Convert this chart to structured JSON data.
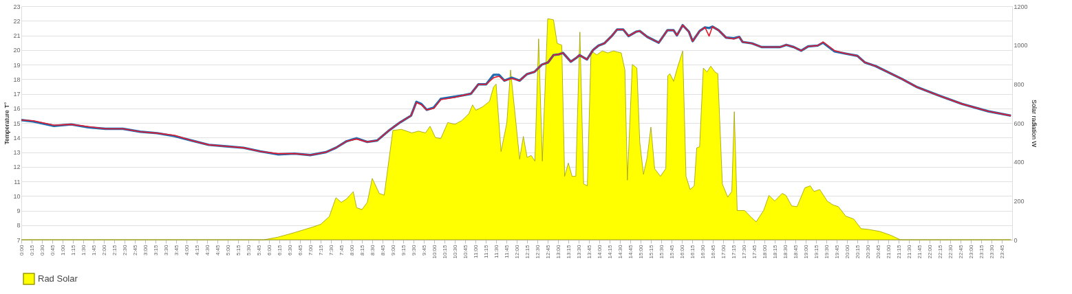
{
  "chart_data": {
    "type": "line",
    "ylabel": "Temperature T°",
    "y2label": "Solar radiation  W",
    "xlim": [
      0,
      24
    ],
    "ylim": [
      7,
      23
    ],
    "yticks": [
      7,
      8,
      9,
      10,
      11,
      12,
      13,
      14,
      15,
      16,
      17,
      18,
      19,
      20,
      21,
      22,
      23
    ],
    "y2lim": [
      0,
      1200
    ],
    "y2ticks": [
      0,
      200,
      400,
      600,
      800,
      1000,
      1200
    ],
    "grid": "y",
    "legend": "bottom",
    "xticks": [
      {
        "value": 0,
        "label": "0:00"
      },
      {
        "value": 0.25,
        "label": "0:15"
      },
      {
        "value": 0.5,
        "label": "0:30"
      },
      {
        "value": 0.75,
        "label": "0:45"
      },
      {
        "value": 1,
        "label": "1:00"
      },
      {
        "value": 1.25,
        "label": "1:15"
      },
      {
        "value": 1.5,
        "label": "1:30"
      },
      {
        "value": 1.75,
        "label": "1:45"
      },
      {
        "value": 2,
        "label": "2:00"
      },
      {
        "value": 2.25,
        "label": "2:15"
      },
      {
        "value": 2.5,
        "label": "2:30"
      },
      {
        "value": 2.75,
        "label": "2:45"
      },
      {
        "value": 3,
        "label": "3:00"
      },
      {
        "value": 3.25,
        "label": "3:15"
      },
      {
        "value": 3.5,
        "label": "3:30"
      },
      {
        "value": 3.75,
        "label": "3:45"
      },
      {
        "value": 4,
        "label": "4:00"
      },
      {
        "value": 4.25,
        "label": "4:15"
      },
      {
        "value": 4.5,
        "label": "4:30"
      },
      {
        "value": 4.75,
        "label": "4:45"
      },
      {
        "value": 5,
        "label": "5:00"
      },
      {
        "value": 5.25,
        "label": "5:15"
      },
      {
        "value": 5.5,
        "label": "5:30"
      },
      {
        "value": 5.75,
        "label": "5:45"
      },
      {
        "value": 6,
        "label": "6:00"
      },
      {
        "value": 6.25,
        "label": "6:15"
      },
      {
        "value": 6.5,
        "label": "6:30"
      },
      {
        "value": 6.75,
        "label": "6:45"
      },
      {
        "value": 7,
        "label": "7:00"
      },
      {
        "value": 7.25,
        "label": "7:15"
      },
      {
        "value": 7.5,
        "label": "7:30"
      },
      {
        "value": 7.75,
        "label": "7:45"
      },
      {
        "value": 8,
        "label": "8:00"
      },
      {
        "value": 8.25,
        "label": "8:15"
      },
      {
        "value": 8.5,
        "label": "8:30"
      },
      {
        "value": 8.75,
        "label": "8:45"
      },
      {
        "value": 9,
        "label": "9:00"
      },
      {
        "value": 9.25,
        "label": "9:15"
      },
      {
        "value": 9.5,
        "label": "9:30"
      },
      {
        "value": 9.75,
        "label": "9:45"
      },
      {
        "value": 10,
        "label": "10:00"
      },
      {
        "value": 10.25,
        "label": "10:15"
      },
      {
        "value": 10.5,
        "label": "10:30"
      },
      {
        "value": 10.75,
        "label": "10:45"
      },
      {
        "value": 11,
        "label": "11:00"
      },
      {
        "value": 11.25,
        "label": "11:15"
      },
      {
        "value": 11.5,
        "label": "11:30"
      },
      {
        "value": 11.75,
        "label": "11:45"
      },
      {
        "value": 12,
        "label": "12:00"
      },
      {
        "value": 12.25,
        "label": "12:15"
      },
      {
        "value": 12.5,
        "label": "12:30"
      },
      {
        "value": 12.75,
        "label": "12:45"
      },
      {
        "value": 13,
        "label": "13:00"
      },
      {
        "value": 13.25,
        "label": "13:15"
      },
      {
        "value": 13.5,
        "label": "13:30"
      },
      {
        "value": 13.75,
        "label": "13:45"
      },
      {
        "value": 14,
        "label": "14:00"
      },
      {
        "value": 14.25,
        "label": "14:15"
      },
      {
        "value": 14.5,
        "label": "14:30"
      },
      {
        "value": 14.75,
        "label": "14:45"
      },
      {
        "value": 15,
        "label": "15:00"
      },
      {
        "value": 15.25,
        "label": "15:15"
      },
      {
        "value": 15.5,
        "label": "15:30"
      },
      {
        "value": 15.75,
        "label": "15:45"
      },
      {
        "value": 16,
        "label": "16:00"
      },
      {
        "value": 16.25,
        "label": "16:15"
      },
      {
        "value": 16.5,
        "label": "16:30"
      },
      {
        "value": 16.75,
        "label": "16:45"
      },
      {
        "value": 17,
        "label": "17:00"
      },
      {
        "value": 17.25,
        "label": "17:15"
      },
      {
        "value": 17.5,
        "label": "17:30"
      },
      {
        "value": 17.75,
        "label": "17:45"
      },
      {
        "value": 18,
        "label": "18:00"
      },
      {
        "value": 18.25,
        "label": "18:15"
      },
      {
        "value": 18.5,
        "label": "18:30"
      },
      {
        "value": 18.75,
        "label": "18:45"
      },
      {
        "value": 19,
        "label": "19:00"
      },
      {
        "value": 19.25,
        "label": "19:15"
      },
      {
        "value": 19.5,
        "label": "19:30"
      },
      {
        "value": 19.75,
        "label": "19:45"
      },
      {
        "value": 20,
        "label": "20:00"
      },
      {
        "value": 20.25,
        "label": "20:15"
      },
      {
        "value": 20.5,
        "label": "20:30"
      },
      {
        "value": 20.75,
        "label": "20:45"
      },
      {
        "value": 21,
        "label": "21:00"
      },
      {
        "value": 21.25,
        "label": "21:15"
      },
      {
        "value": 21.5,
        "label": "21:30"
      },
      {
        "value": 21.75,
        "label": "21:45"
      },
      {
        "value": 22,
        "label": "22:00"
      },
      {
        "value": 22.25,
        "label": "22:15"
      },
      {
        "value": 22.5,
        "label": "22:30"
      },
      {
        "value": 22.75,
        "label": "22:45"
      },
      {
        "value": 23,
        "label": "23:00"
      },
      {
        "value": 23.25,
        "label": "23:15"
      },
      {
        "value": 23.5,
        "label": "23:30"
      },
      {
        "value": 23.75,
        "label": "23:45"
      }
    ],
    "series": [
      {
        "name": "Rad Solar",
        "type": "area",
        "axis": "y2",
        "color": "#ffff00",
        "x": [
          0,
          5.88,
          6.21,
          6.62,
          7.04,
          7.25,
          7.46,
          7.62,
          7.75,
          7.88,
          8.04,
          8.12,
          8.25,
          8.38,
          8.5,
          8.67,
          8.79,
          9.0,
          9.21,
          9.46,
          9.62,
          9.79,
          9.9,
          10.03,
          10.16,
          10.33,
          10.5,
          10.66,
          10.84,
          10.93,
          11.01,
          11.18,
          11.34,
          11.44,
          11.5,
          11.62,
          11.76,
          11.85,
          12.07,
          12.16,
          12.25,
          12.35,
          12.44,
          12.53,
          12.62,
          12.75,
          12.89,
          12.98,
          13.09,
          13.16,
          13.25,
          13.34,
          13.43,
          13.53,
          13.62,
          13.71,
          13.8,
          13.94,
          14.07,
          14.21,
          14.34,
          14.53,
          14.62,
          14.68,
          14.8,
          14.91,
          14.98,
          15.07,
          15.16,
          15.25,
          15.34,
          15.48,
          15.61,
          15.66,
          15.71,
          15.8,
          15.89,
          16.02,
          16.1,
          16.2,
          16.3,
          16.36,
          16.43,
          16.52,
          16.61,
          16.7,
          16.8,
          16.87,
          16.98,
          17.11,
          17.21,
          17.27,
          17.34,
          17.52,
          17.7,
          17.8,
          17.98,
          18.11,
          18.25,
          18.43,
          18.52,
          18.66,
          18.79,
          18.98,
          19.11,
          19.2,
          19.34,
          19.52,
          19.66,
          19.79,
          19.97,
          20.16,
          20.34,
          20.52,
          20.79,
          21.06,
          21.29,
          23.97
        ],
        "values": [
          0,
          0,
          13,
          37,
          64,
          79,
          119,
          216,
          192,
          210,
          247,
          165,
          155,
          192,
          315,
          238,
          229,
          562,
          567,
          549,
          558,
          549,
          583,
          525,
          520,
          602,
          593,
          611,
          647,
          693,
          665,
          684,
          711,
          785,
          800,
          453,
          600,
          872,
          414,
          531,
          423,
          433,
          404,
          1032,
          404,
          1136,
          1130,
          1009,
          1000,
          326,
          394,
          326,
          326,
          1067,
          287,
          277,
          970,
          950,
          970,
          960,
          970,
          960,
          872,
          306,
          901,
          882,
          501,
          336,
          423,
          579,
          365,
          326,
          365,
          843,
          853,
          814,
          882,
          970,
          326,
          258,
          277,
          472,
          478,
          882,
          862,
          892,
          862,
          853,
          287,
          219,
          248,
          658,
          150,
          150,
          111,
          92,
          150,
          228,
          199,
          238,
          228,
          174,
          170,
          267,
          277,
          248,
          258,
          199,
          179,
          170,
          121,
          107,
          57,
          53,
          43,
          23,
          0,
          0
        ]
      },
      {
        "type": "line",
        "color": "#1f6bb0",
        "x": [
          0,
          0.29,
          0.79,
          1.21,
          1.62,
          2.04,
          2.46,
          2.88,
          3.29,
          3.71,
          4.12,
          4.54,
          4.96,
          5.38,
          5.79,
          6.21,
          6.62,
          7.0,
          7.38,
          7.62,
          7.88,
          8.12,
          8.38,
          8.62,
          8.89,
          9.18,
          9.44,
          9.57,
          9.69,
          9.82,
          9.99,
          10.16,
          10.5,
          10.71,
          10.89,
          11.07,
          11.26,
          11.44,
          11.57,
          11.7,
          11.88,
          12.07,
          12.25,
          12.43,
          12.61,
          12.76,
          12.89,
          13.02,
          13.12,
          13.31,
          13.44,
          13.52,
          13.7,
          13.85,
          13.98,
          14.12,
          14.3,
          14.43,
          14.58,
          14.71,
          14.89,
          14.98,
          15.16,
          15.44,
          15.65,
          15.8,
          15.88,
          16.02,
          16.17,
          16.26,
          16.43,
          16.56,
          16.66,
          16.74,
          16.89,
          17.07,
          17.26,
          17.39,
          17.47,
          17.7,
          17.93,
          18.16,
          18.38,
          18.53,
          18.71,
          18.89,
          19.06,
          19.29,
          19.42,
          19.7,
          19.97,
          20.25,
          20.43,
          20.69,
          21.34,
          21.7,
          22.25,
          22.79,
          23.42,
          23.97
        ],
        "values": [
          15.2,
          15.1,
          14.8,
          14.9,
          14.7,
          14.6,
          14.6,
          14.4,
          14.3,
          14.1,
          13.8,
          13.5,
          13.4,
          13.3,
          13.05,
          12.85,
          12.9,
          12.8,
          13.0,
          13.3,
          13.75,
          13.95,
          13.7,
          13.8,
          14.45,
          15.05,
          15.5,
          16.45,
          16.3,
          15.9,
          16.05,
          16.65,
          16.8,
          16.9,
          17.0,
          17.65,
          17.65,
          18.3,
          18.3,
          17.9,
          18.1,
          17.9,
          18.35,
          18.5,
          19.0,
          19.15,
          19.65,
          19.7,
          19.8,
          19.2,
          19.45,
          19.65,
          19.35,
          20.0,
          20.3,
          20.45,
          20.95,
          21.4,
          21.4,
          20.95,
          21.25,
          21.3,
          20.9,
          20.5,
          21.35,
          21.35,
          21.0,
          21.7,
          21.25,
          20.6,
          21.3,
          21.55,
          21.5,
          21.6,
          21.35,
          20.85,
          20.8,
          20.9,
          20.55,
          20.45,
          20.2,
          20.2,
          20.2,
          20.35,
          20.2,
          19.95,
          20.25,
          20.3,
          20.5,
          19.9,
          19.75,
          19.6,
          19.15,
          18.9,
          18.0,
          17.45,
          16.85,
          16.3,
          15.8,
          15.5
        ]
      },
      {
        "type": "line",
        "color": "#e8192c",
        "x": [
          0,
          0.29,
          0.79,
          1.21,
          1.62,
          2.04,
          2.46,
          2.88,
          3.29,
          3.71,
          4.12,
          4.54,
          4.96,
          5.38,
          5.79,
          6.21,
          6.62,
          7.0,
          7.38,
          7.62,
          7.88,
          8.12,
          8.38,
          8.62,
          8.89,
          9.18,
          9.44,
          9.57,
          9.69,
          9.82,
          9.99,
          10.16,
          10.5,
          10.71,
          10.89,
          11.07,
          11.26,
          11.44,
          11.57,
          11.7,
          11.88,
          12.07,
          12.25,
          12.43,
          12.61,
          12.76,
          12.89,
          13.02,
          13.12,
          13.31,
          13.44,
          13.52,
          13.7,
          13.85,
          13.98,
          14.12,
          14.3,
          14.43,
          14.58,
          14.71,
          14.89,
          14.98,
          15.16,
          15.44,
          15.65,
          15.8,
          15.88,
          16.02,
          16.17,
          16.26,
          16.43,
          16.56,
          16.66,
          16.74,
          16.89,
          17.07,
          17.26,
          17.39,
          17.47,
          17.7,
          17.93,
          18.16,
          18.38,
          18.53,
          18.71,
          18.89,
          19.06,
          19.29,
          19.42,
          19.7,
          19.97,
          20.25,
          20.43,
          20.69,
          21.34,
          21.7,
          22.25,
          22.79,
          23.42,
          23.97
        ],
        "values": [
          15.2,
          15.15,
          14.85,
          14.9,
          14.75,
          14.6,
          14.6,
          14.4,
          14.3,
          14.15,
          13.8,
          13.5,
          13.4,
          13.3,
          13.05,
          12.9,
          12.9,
          12.8,
          13.0,
          13.3,
          13.75,
          13.9,
          13.7,
          13.8,
          14.45,
          15.05,
          15.5,
          16.4,
          16.25,
          15.9,
          16.0,
          16.6,
          16.75,
          16.9,
          17.0,
          17.65,
          17.65,
          18.1,
          18.2,
          17.9,
          18.05,
          17.9,
          18.35,
          18.5,
          19.0,
          19.15,
          19.65,
          19.7,
          19.8,
          19.2,
          19.45,
          19.65,
          19.35,
          20.0,
          20.3,
          20.45,
          20.95,
          21.4,
          21.4,
          20.95,
          21.25,
          21.3,
          20.9,
          20.5,
          21.35,
          21.35,
          21.0,
          21.7,
          21.25,
          20.6,
          21.3,
          21.55,
          20.95,
          21.6,
          21.35,
          20.85,
          20.75,
          20.9,
          20.55,
          20.45,
          20.2,
          20.2,
          20.2,
          20.35,
          20.2,
          19.95,
          20.25,
          20.3,
          20.55,
          19.95,
          19.75,
          19.6,
          19.15,
          18.9,
          18.0,
          17.45,
          16.85,
          16.3,
          15.8,
          15.5
        ]
      }
    ]
  }
}
